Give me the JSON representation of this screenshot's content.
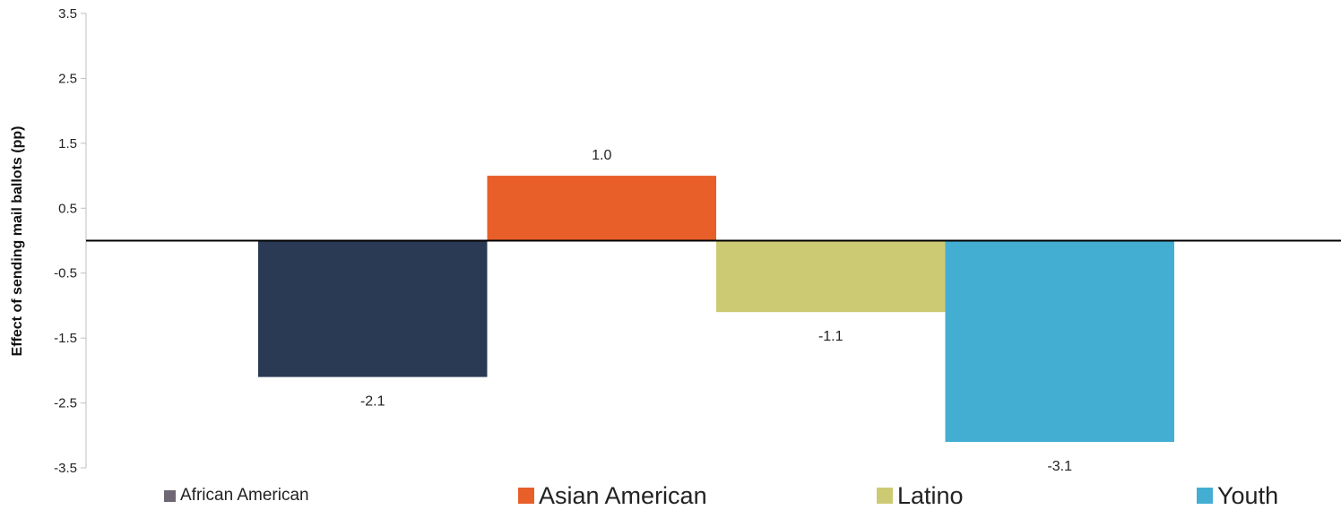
{
  "chart_data": {
    "type": "bar",
    "categories": [
      "African American",
      "Asian American",
      "Latino",
      "Youth"
    ],
    "values": [
      -2.1,
      1.0,
      -1.1,
      -3.1
    ],
    "data_labels": [
      "-2.1",
      "1.0",
      "-1.1",
      "-3.1"
    ],
    "colors": [
      "#2a3a55",
      "#e85f2a",
      "#cdca74",
      "#44aed2"
    ],
    "legend_swatch_colors": [
      "#6f6773",
      "#e85f2a",
      "#cdca74",
      "#44aed2"
    ],
    "ylabel": "Effect of sending mail ballots (pp)",
    "ylim": [
      -3.5,
      3.5
    ],
    "yticks": [
      "3.5",
      "2.5",
      "1.5",
      "0.5",
      "-0.5",
      "-1.5",
      "-2.5",
      "-3.5"
    ],
    "grid": false,
    "legend_position": "bottom",
    "legend": [
      "African American",
      "Asian American",
      "Latino",
      "Youth"
    ]
  }
}
